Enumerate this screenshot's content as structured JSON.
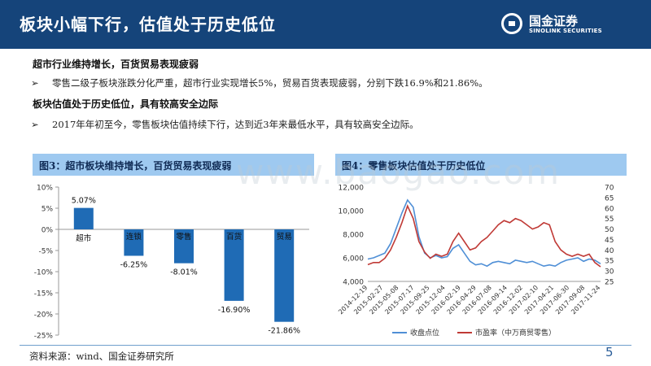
{
  "title": "板块小幅下行，估值处于历史低位",
  "logo": {
    "name": "国金证券",
    "sub": "SINOLINK SECURITIES"
  },
  "sections": [
    {
      "heading": "超市行业维持增长，百货贸易表现疲弱",
      "bullet": "零售二级子板块涨跌分化严重，超市行业实现增长5%，贸易百货表现疲弱，分别下跌16.9%和21.86%。"
    },
    {
      "heading": "板块估值处于历史低位，具有较高安全边际",
      "bullet": "2017年年初至今，零售板块估值持续下行，达到近3年来最低水平，具有较高安全边际。"
    }
  ],
  "bullet_marker": "➢",
  "watermark": "www.baogao.com",
  "chart_data": [
    {
      "type": "bar",
      "title": "图3：超市板块维持增长，百货贸易表现疲弱",
      "categories": [
        "超市",
        "连锁",
        "零售",
        "百货",
        "贸易"
      ],
      "values": [
        5.07,
        -6.25,
        -8.01,
        -16.9,
        -21.86
      ],
      "value_labels": [
        "5.07%",
        "-6.25%",
        "-8.01%",
        "-16.90%",
        "-21.86%"
      ],
      "y_ticks": [
        "10%",
        "5%",
        "0%",
        "-5%",
        "-10%",
        "-15%",
        "-20%",
        "-25%"
      ],
      "ylim": [
        -25,
        10
      ],
      "color": "#1f6bb5"
    },
    {
      "type": "line",
      "title": "图4：零售板块估值处于历史低位",
      "x_ticks": [
        "2014-12-19",
        "2015-02-27",
        "2015-05-08",
        "2015-07-17",
        "2015-09-25",
        "2015-12-04",
        "2016-02-19",
        "2016-04-29",
        "2016-07-08",
        "2016-09-14",
        "2016-12-02",
        "2017-02-10",
        "2017-04-21",
        "2017-06-30",
        "2017-09-08",
        "2017-11-24"
      ],
      "y_left_ticks": [
        "12,000",
        "10,000",
        "8,000",
        "6,000",
        "4,000"
      ],
      "y_right_ticks": [
        "70",
        "65",
        "60",
        "55",
        "50",
        "45",
        "40",
        "35",
        "30",
        "25"
      ],
      "ylim_left": [
        4000,
        12000
      ],
      "ylim_right": [
        25,
        70
      ],
      "series": [
        {
          "name": "收盘点位",
          "axis": "left",
          "color": "#4f8fd6",
          "values": [
            5900,
            6000,
            6200,
            6400,
            7200,
            8500,
            9800,
            10900,
            10300,
            7800,
            6400,
            6000,
            6200,
            6000,
            6100,
            6800,
            7100,
            6400,
            5700,
            5400,
            5500,
            5300,
            5600,
            5700,
            5600,
            5500,
            5800,
            5700,
            5600,
            5700,
            5500,
            5300,
            5400,
            5300,
            5600,
            5800,
            5900,
            6000,
            5700,
            5900,
            5800,
            5500
          ]
        },
        {
          "name": "市盈率（中万商贸零售）",
          "axis": "right",
          "color": "#c03a36",
          "values": [
            33,
            34,
            34,
            36,
            40,
            46,
            53,
            61,
            55,
            44,
            39,
            36,
            38,
            37,
            38,
            44,
            48,
            44,
            40,
            41,
            44,
            46,
            49,
            52,
            54,
            53,
            55,
            54,
            52,
            50,
            51,
            53,
            52,
            44,
            40,
            38,
            37,
            38,
            37,
            38,
            34,
            32
          ]
        }
      ]
    }
  ],
  "source": "资料来源：wind、国金证券研究所",
  "page_number": "5"
}
